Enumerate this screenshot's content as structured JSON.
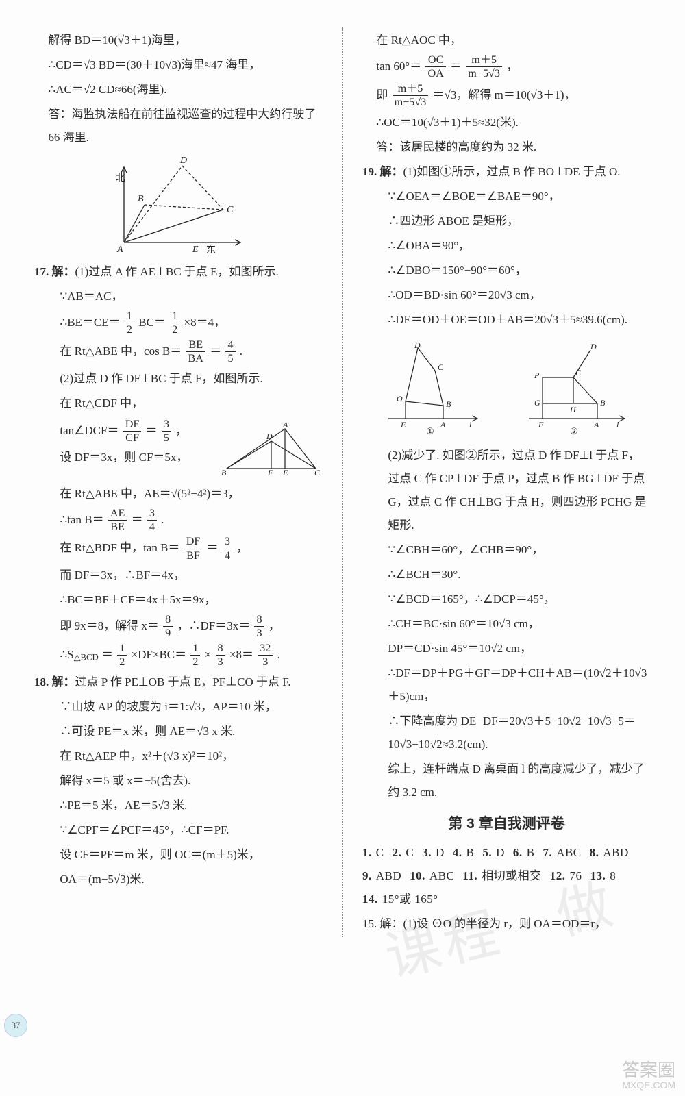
{
  "left": {
    "p16_l1": "解得 BD＝10(√3＋1)海里，",
    "p16_l2": "∴CD＝√3 BD＝(30＋10√3)海里≈47 海里，",
    "p16_l3": "∴AC＝√2 CD≈66(海里).",
    "p16_l4": "答：海监执法船在前往监视巡查的过程中大约行驶了 66 海里.",
    "diagram16_labels": {
      "A": "A",
      "B": "B",
      "C": "C",
      "D": "D",
      "E": "E",
      "north": "北",
      "east": "东"
    },
    "q17_title": "17. 解：",
    "q17_1": "(1)过点 A 作 AE⊥BC 于点 E，如图所示.",
    "q17_2": "∵AB＝AC，",
    "q17_3a": "∴BE＝CE＝",
    "q17_3_frac": {
      "num": "1",
      "den": "2"
    },
    "q17_3b": "BC＝",
    "q17_3_frac2": {
      "num": "1",
      "den": "2"
    },
    "q17_3c": "×8＝4，",
    "q17_4a": "在 Rt△ABE 中，cos B＝",
    "q17_4_frac": {
      "num": "BE",
      "den": "BA"
    },
    "q17_4b": "＝",
    "q17_4_frac2": {
      "num": "4",
      "den": "5"
    },
    "q17_4c": ".",
    "q17_5": "(2)过点 D 作 DF⊥BC 于点 F，如图所示.",
    "q17_6": "在 Rt△CDF 中，",
    "q17_7a": "tan∠DCF＝",
    "q17_7_frac": {
      "num": "DF",
      "den": "CF"
    },
    "q17_7b": "＝",
    "q17_7_frac2": {
      "num": "3",
      "den": "5"
    },
    "q17_7c": "，",
    "q17_8": "设 DF＝3x，则 CF＝5x，",
    "q17_9": "在 Rt△ABE 中，AE＝√(5²−4²)＝3，",
    "q17_10a": "∴tan B＝",
    "q17_10_frac": {
      "num": "AE",
      "den": "BE"
    },
    "q17_10b": "＝",
    "q17_10_frac2": {
      "num": "3",
      "den": "4"
    },
    "q17_10c": ".",
    "q17_11a": "在 Rt△BDF 中，tan B＝",
    "q17_11_frac": {
      "num": "DF",
      "den": "BF"
    },
    "q17_11b": "＝",
    "q17_11_frac2": {
      "num": "3",
      "den": "4"
    },
    "q17_11c": "，",
    "q17_12": "而 DF＝3x，∴BF＝4x，",
    "q17_13": "∴BC＝BF＋CF＝4x＋5x＝9x，",
    "q17_14a": "即 9x＝8，解得 x＝",
    "q17_14_frac": {
      "num": "8",
      "den": "9"
    },
    "q17_14b": "，∴DF＝3x＝",
    "q17_14_frac2": {
      "num": "8",
      "den": "3"
    },
    "q17_14c": "，",
    "q17_15a": "∴S",
    "q17_15_sub": "△BCD",
    "q17_15b": "＝",
    "q17_15_frac": {
      "num": "1",
      "den": "2"
    },
    "q17_15c": "×DF×BC＝",
    "q17_15_frac2": {
      "num": "1",
      "den": "2"
    },
    "q17_15d": "×",
    "q17_15_frac3": {
      "num": "8",
      "den": "3"
    },
    "q17_15e": "×8＝",
    "q17_15_frac4": {
      "num": "32",
      "den": "3"
    },
    "q17_15f": ".",
    "diagram17_labels": {
      "A": "A",
      "B": "B",
      "C": "C",
      "D": "D",
      "E": "E",
      "F": "F"
    },
    "q18_title": "18. 解：",
    "q18_1": "过点 P 作 PE⊥OB 于点 E，PF⊥CO 于点 F.",
    "q18_2": "∵山坡 AP 的坡度为 i＝1:√3，AP＝10 米，",
    "q18_3": "∴可设 PE＝x 米，则 AE＝√3 x 米.",
    "q18_4": "在 Rt△AEP 中，x²＋(√3 x)²＝10²，",
    "q18_5": "解得 x＝5 或 x＝−5(舍去).",
    "q18_6": "∴PE＝5 米，AE＝5√3 米.",
    "q18_7": "∵∠CPF＝∠PCF＝45°，∴CF＝PF.",
    "q18_8": "设 CF＝PF＝m 米，则 OC＝(m＋5)米，",
    "q18_9": "OA＝(m−5√3)米."
  },
  "right": {
    "r18_1": "在 Rt△AOC 中，",
    "r18_2a": "tan 60°＝",
    "r18_2_frac": {
      "num": "OC",
      "den": "OA"
    },
    "r18_2b": "＝",
    "r18_2_frac2": {
      "num": "m＋5",
      "den": "m−5√3"
    },
    "r18_2c": "，",
    "r18_3a": "即 ",
    "r18_3_frac": {
      "num": "m＋5",
      "den": "m−5√3"
    },
    "r18_3b": "＝√3，解得 m＝10(√3＋1)，",
    "r18_4": "∴OC＝10(√3＋1)＋5≈32(米).",
    "r18_5": "答：该居民楼的高度约为 32 米.",
    "q19_title": "19. 解：",
    "q19_1": "(1)如图①所示，过点 B 作 BO⊥DE 于点 O.",
    "q19_2": "∵∠OEA＝∠BOE＝∠BAE＝90°，",
    "q19_3": "∴四边形 ABOE 是矩形，",
    "q19_4": "∴∠OBA＝90°，",
    "q19_5": "∴∠DBO＝150°−90°＝60°，",
    "q19_6": "∴OD＝BD·sin 60°＝20√3 cm，",
    "q19_7": "∴DE＝OD＋OE＝OD＋AB＝20√3＋5≈39.6(cm).",
    "diagram19_1": {
      "D": "D",
      "C": "C",
      "O": "O",
      "E": "E",
      "A": "A",
      "B": "B",
      "l": "l",
      "num": "①"
    },
    "diagram19_2": {
      "D": "D",
      "C": "C",
      "P": "P",
      "G": "G",
      "H": "H",
      "B": "B",
      "F": "F",
      "A": "A",
      "l": "l",
      "num": "②"
    },
    "q19_8": "(2)减少了. 如图②所示，过点 D 作 DF⊥l 于点 F，过点 C 作 CP⊥DF 于点 P，过点 B 作 BG⊥DF 于点 G，过点 C 作 CH⊥BG 于点 H，则四边形 PCHG 是矩形.",
    "q19_9": "∵∠CBH＝60°，∠CHB＝90°，",
    "q19_10": "∴∠BCH＝30°.",
    "q19_11": "∵∠BCD＝165°，∴∠DCP＝45°，",
    "q19_12": "∴CH＝BC·sin 60°＝10√3 cm，",
    "q19_13": "DP＝CD·sin 45°＝10√2 cm，",
    "q19_14": "∴DF＝DP＋PG＋GF＝DP＋CH＋AB＝(10√2＋10√3＋5)cm，",
    "q19_15": "∴下降高度为 DE−DF＝20√3＋5−10√2−10√3−5＝10√3−10√2≈3.2(cm).",
    "q19_16": "综上，连杆端点 D 离桌面 l 的高度减少了，减少了约 3.2 cm.",
    "heading": "第 3 章自我测评卷",
    "answers": [
      {
        "n": "1.",
        "a": "C"
      },
      {
        "n": "2.",
        "a": "C"
      },
      {
        "n": "3.",
        "a": "D"
      },
      {
        "n": "4.",
        "a": "B"
      },
      {
        "n": "5.",
        "a": "D"
      },
      {
        "n": "6.",
        "a": "B"
      },
      {
        "n": "7.",
        "a": "ABC"
      },
      {
        "n": "8.",
        "a": "ABD"
      },
      {
        "n": "9.",
        "a": "ABD"
      },
      {
        "n": "10.",
        "a": "ABC"
      },
      {
        "n": "11.",
        "a": "相切或相交"
      },
      {
        "n": "12.",
        "a": "76"
      },
      {
        "n": "13.",
        "a": "8"
      },
      {
        "n": "14.",
        "a": "15°或 165°"
      }
    ],
    "q15": "15. 解：(1)设 ⊙O 的半径为 r，则 OA＝OD＝r，"
  },
  "page_badge": "37",
  "watermark": "课程 · 做",
  "corner": {
    "l1": "答案圈",
    "l2": "MXQE.COM"
  }
}
